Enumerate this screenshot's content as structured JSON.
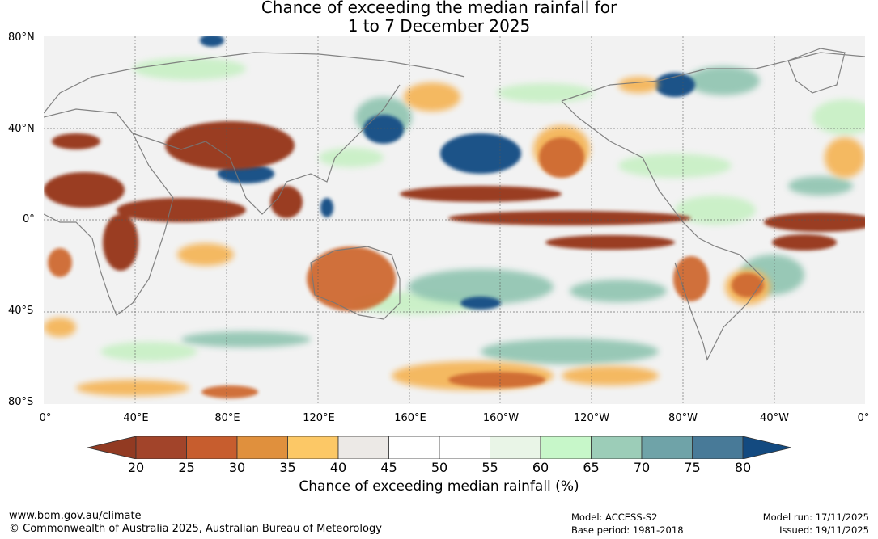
{
  "title": {
    "line1": "Chance of exceeding the median rainfall for",
    "line2": "1 to 7 December 2025"
  },
  "map": {
    "lat_labels": [
      "80°N",
      "40°N",
      "0°",
      "40°S",
      "80°S"
    ],
    "lon_labels": [
      "0°",
      "40°E",
      "80°E",
      "120°E",
      "160°E",
      "160°W",
      "120°W",
      "80°W",
      "40°W",
      "0°"
    ]
  },
  "colorbar": {
    "ticks": [
      "20",
      "25",
      "30",
      "35",
      "40",
      "45",
      "50",
      "55",
      "60",
      "65",
      "70",
      "75",
      "80"
    ],
    "colors": [
      "#a2442a",
      "#c75d2e",
      "#e0903d",
      "#fcc866",
      "#ece9e6",
      "#ffffff",
      "#ffffff",
      "#e9f5e7",
      "#c7f7c9",
      "#9ccdb8",
      "#6fa3a8",
      "#487a98",
      "#144b81"
    ],
    "low_color": "#923a22",
    "high_color": "#134a80",
    "title": "Chance of exceeding median rainfall (%)"
  },
  "footer": {
    "website": "www.bom.gov.au/climate",
    "copyright": "© Commonwealth of Australia 2025, Australian Bureau of Meteorology",
    "model": "Model: ACCESS-S2",
    "base_period": "Base period: 1981-2018",
    "model_run": "Model run: 17/11/2025",
    "issued": "Issued: 19/11/2025"
  }
}
